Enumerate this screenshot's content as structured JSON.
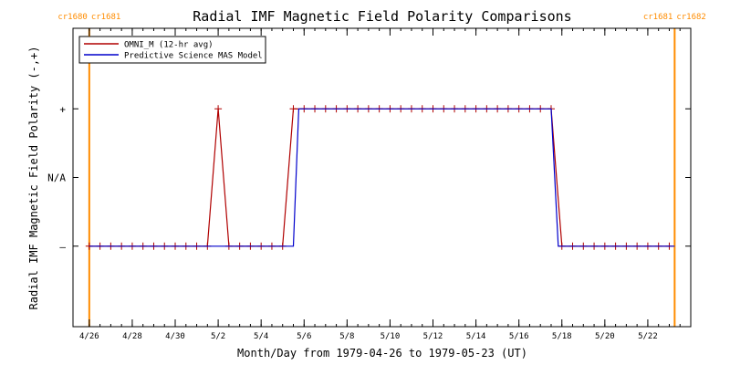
{
  "chart_data": {
    "type": "line",
    "title": "Radial IMF Magnetic Field Polarity Comparisons",
    "xlabel": "Month/Day from 1979-04-26 to 1979-05-23 (UT)",
    "ylabel": "Radial IMF Magnetic Field Polarity (-,+)",
    "xlim": [
      "1979-04-25T16:00",
      "1979-05-24T00:00"
    ],
    "ylim": [
      -2,
      2
    ],
    "y_levels": [
      {
        "value": 1,
        "label": "+"
      },
      {
        "value": 0,
        "label": "N/A"
      },
      {
        "value": -1,
        "label": "–"
      }
    ],
    "x_ticks": [
      {
        "x": "1979-04-26",
        "label": "4/26"
      },
      {
        "x": "1979-04-28",
        "label": "4/28"
      },
      {
        "x": "1979-04-30",
        "label": "4/30"
      },
      {
        "x": "1979-05-02",
        "label": "5/2"
      },
      {
        "x": "1979-05-04",
        "label": "5/4"
      },
      {
        "x": "1979-05-06",
        "label": "5/6"
      },
      {
        "x": "1979-05-08",
        "label": "5/8"
      },
      {
        "x": "1979-05-10",
        "label": "5/10"
      },
      {
        "x": "1979-05-12",
        "label": "5/12"
      },
      {
        "x": "1979-05-14",
        "label": "5/14"
      },
      {
        "x": "1979-05-16",
        "label": "5/16"
      },
      {
        "x": "1979-05-18",
        "label": "5/18"
      },
      {
        "x": "1979-05-20",
        "label": "5/20"
      },
      {
        "x": "1979-05-22",
        "label": "5/22"
      }
    ],
    "carrington_markers": [
      {
        "x": "1979-04-26T00:00",
        "left_label": "cr1680",
        "right_label": "cr1681",
        "color": "#ff8c00"
      },
      {
        "x": "1979-05-23T06:00",
        "left_label": "cr1681",
        "right_label": "cr1682",
        "color": "#ff8c00"
      }
    ],
    "series": [
      {
        "name": "OMNI_M (12-hr avg)",
        "color": "#b00000",
        "marker": "plus",
        "points": [
          [
            "1979-04-26T00:00",
            -1
          ],
          [
            "1979-04-26T12:00",
            -1
          ],
          [
            "1979-04-27T00:00",
            -1
          ],
          [
            "1979-04-27T12:00",
            -1
          ],
          [
            "1979-04-28T00:00",
            -1
          ],
          [
            "1979-04-28T12:00",
            -1
          ],
          [
            "1979-04-29T00:00",
            -1
          ],
          [
            "1979-04-29T12:00",
            -1
          ],
          [
            "1979-04-30T00:00",
            -1
          ],
          [
            "1979-04-30T12:00",
            -1
          ],
          [
            "1979-05-01T00:00",
            -1
          ],
          [
            "1979-05-01T12:00",
            -1
          ],
          [
            "1979-05-02T00:00",
            1
          ],
          [
            "1979-05-02T12:00",
            -1
          ],
          [
            "1979-05-03T00:00",
            -1
          ],
          [
            "1979-05-03T12:00",
            -1
          ],
          [
            "1979-05-04T00:00",
            -1
          ],
          [
            "1979-05-04T12:00",
            -1
          ],
          [
            "1979-05-05T00:00",
            -1
          ],
          [
            "1979-05-05T12:00",
            1
          ],
          [
            "1979-05-06T00:00",
            1
          ],
          [
            "1979-05-06T12:00",
            1
          ],
          [
            "1979-05-07T00:00",
            1
          ],
          [
            "1979-05-07T12:00",
            1
          ],
          [
            "1979-05-08T00:00",
            1
          ],
          [
            "1979-05-08T12:00",
            1
          ],
          [
            "1979-05-09T00:00",
            1
          ],
          [
            "1979-05-09T12:00",
            1
          ],
          [
            "1979-05-10T00:00",
            1
          ],
          [
            "1979-05-10T12:00",
            1
          ],
          [
            "1979-05-11T00:00",
            1
          ],
          [
            "1979-05-11T12:00",
            1
          ],
          [
            "1979-05-12T00:00",
            1
          ],
          [
            "1979-05-12T12:00",
            1
          ],
          [
            "1979-05-13T00:00",
            1
          ],
          [
            "1979-05-13T12:00",
            1
          ],
          [
            "1979-05-14T00:00",
            1
          ],
          [
            "1979-05-14T12:00",
            1
          ],
          [
            "1979-05-15T00:00",
            1
          ],
          [
            "1979-05-15T12:00",
            1
          ],
          [
            "1979-05-16T00:00",
            1
          ],
          [
            "1979-05-16T12:00",
            1
          ],
          [
            "1979-05-17T00:00",
            1
          ],
          [
            "1979-05-17T12:00",
            1
          ],
          [
            "1979-05-18T00:00",
            -1
          ],
          [
            "1979-05-18T12:00",
            -1
          ],
          [
            "1979-05-19T00:00",
            -1
          ],
          [
            "1979-05-19T12:00",
            -1
          ],
          [
            "1979-05-20T00:00",
            -1
          ],
          [
            "1979-05-20T12:00",
            -1
          ],
          [
            "1979-05-21T00:00",
            -1
          ],
          [
            "1979-05-21T12:00",
            -1
          ],
          [
            "1979-05-22T00:00",
            -1
          ],
          [
            "1979-05-22T12:00",
            -1
          ],
          [
            "1979-05-23T00:00",
            -1
          ]
        ]
      },
      {
        "name": "Predictive Science MAS Model",
        "color": "#0000cc",
        "marker": "none",
        "points": [
          [
            "1979-04-26T00:00",
            -1
          ],
          [
            "1979-05-05T12:00",
            -1
          ],
          [
            "1979-05-05T18:00",
            1
          ],
          [
            "1979-05-17T12:00",
            1
          ],
          [
            "1979-05-17T20:00",
            -1
          ],
          [
            "1979-05-23T06:00",
            -1
          ]
        ]
      }
    ],
    "legend_position": "top-left"
  }
}
